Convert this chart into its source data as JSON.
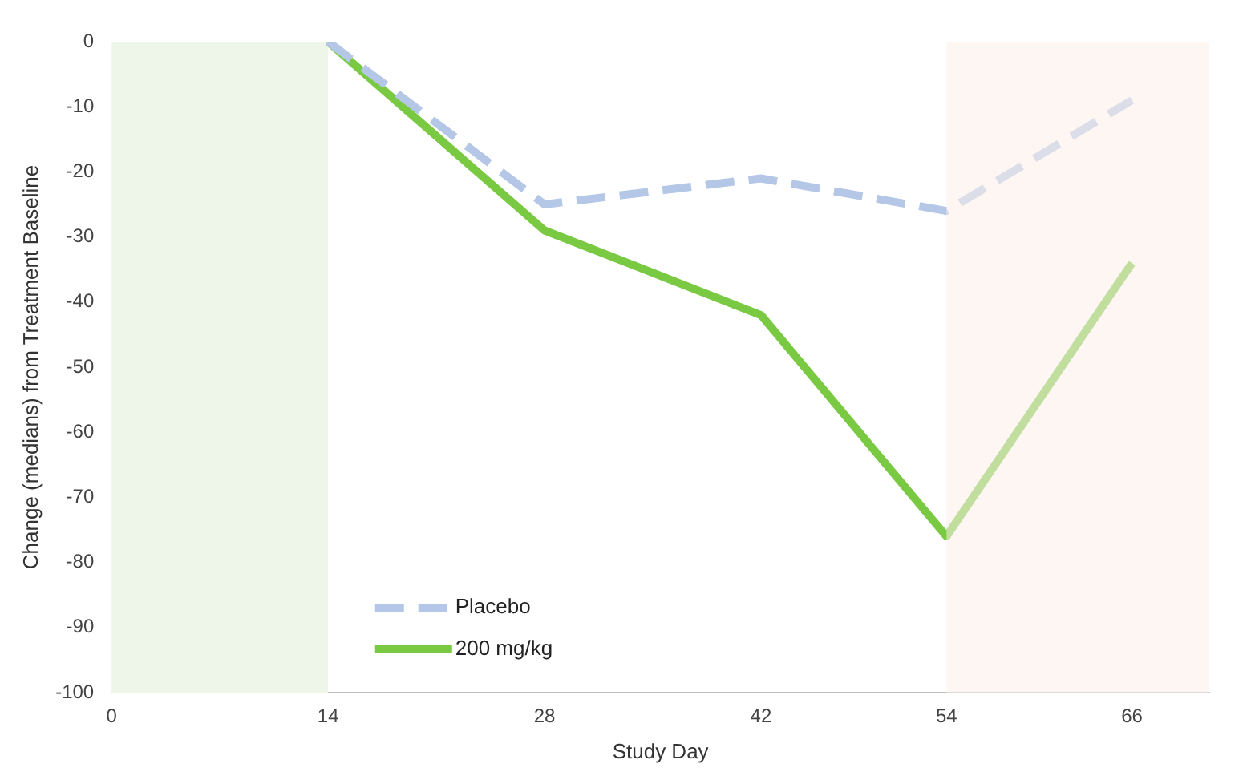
{
  "chart_data": {
    "type": "line",
    "xlabel": "Study Day",
    "ylabel": "Change (medians) from Treatment Baseline",
    "x": [
      14,
      28,
      42,
      54,
      66
    ],
    "series": [
      {
        "name": "Placebo",
        "color": "#b4c7e7",
        "line_style": "dashed",
        "values": [
          0,
          -25,
          -21,
          -26,
          -9
        ]
      },
      {
        "name": "200 mg/kg",
        "color": "#7ac943",
        "line_style": "solid",
        "values": [
          0,
          -29,
          -42,
          -76,
          -34
        ]
      }
    ],
    "xlim": [
      0,
      71
    ],
    "xticks": [
      0,
      14,
      28,
      42,
      54,
      66
    ],
    "ylim": [
      -100,
      0
    ],
    "yticks": [
      0,
      -10,
      -20,
      -30,
      -40,
      -50,
      -60,
      -70,
      -80,
      -90,
      -100
    ],
    "bands": [
      {
        "axis": "x",
        "from": 0,
        "to": 14,
        "color": "#eef6ea"
      },
      {
        "axis": "x",
        "from": 54,
        "to": 71,
        "color": "#fcefea"
      }
    ],
    "grid": false,
    "legend": "bottom left",
    "marker": "none"
  }
}
